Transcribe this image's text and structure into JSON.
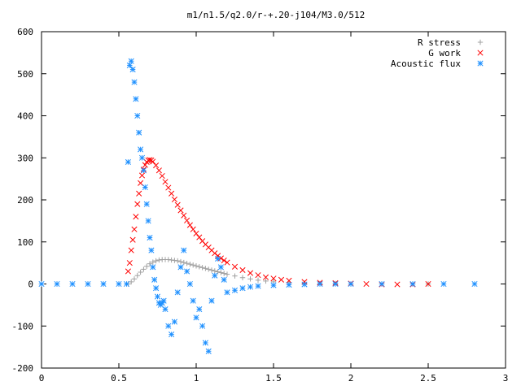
{
  "chart_data": {
    "type": "scatter",
    "title": "m1/n1.5/q2.0/r-+.20-j104/M3.0/512",
    "xlabel": "",
    "ylabel": "",
    "xlim": [
      0,
      3
    ],
    "ylim": [
      -200,
      600
    ],
    "grid": false,
    "legend_position": "top-right",
    "x_ticks": [
      "0",
      "0.5",
      "1",
      "1.5",
      "2",
      "2.5",
      "3"
    ],
    "y_ticks": [
      "-200",
      "-100",
      "0",
      "100",
      "200",
      "300",
      "400",
      "500",
      "600"
    ],
    "series": [
      {
        "name": "R stress",
        "marker": "plus",
        "color": "#a0a0a0",
        "x": [
          0.0,
          0.1,
          0.2,
          0.3,
          0.4,
          0.5,
          0.56,
          0.58,
          0.6,
          0.62,
          0.64,
          0.66,
          0.68,
          0.7,
          0.72,
          0.74,
          0.76,
          0.78,
          0.8,
          0.82,
          0.84,
          0.86,
          0.88,
          0.9,
          0.92,
          0.94,
          0.96,
          0.98,
          1.0,
          1.02,
          1.04,
          1.06,
          1.08,
          1.1,
          1.12,
          1.14,
          1.16,
          1.18,
          1.2,
          1.25,
          1.3,
          1.35,
          1.4,
          1.45,
          1.5,
          1.6,
          1.7,
          1.8,
          1.9,
          2.0,
          2.2,
          2.4,
          2.5
        ],
        "y": [
          0,
          0,
          0,
          0,
          0,
          0,
          0,
          5,
          12,
          20,
          28,
          35,
          42,
          48,
          52,
          55,
          57,
          58,
          58,
          58,
          57,
          56,
          55,
          53,
          51,
          49,
          47,
          45,
          43,
          41,
          39,
          37,
          35,
          33,
          31,
          29,
          27,
          25,
          23,
          19,
          15,
          12,
          9,
          7,
          5,
          3,
          2,
          1,
          1,
          0,
          0,
          0,
          0
        ]
      },
      {
        "name": "G work",
        "marker": "cross",
        "color": "#ff0000",
        "x": [
          0.56,
          0.57,
          0.58,
          0.59,
          0.6,
          0.61,
          0.62,
          0.63,
          0.64,
          0.65,
          0.66,
          0.67,
          0.68,
          0.69,
          0.7,
          0.71,
          0.72,
          0.74,
          0.76,
          0.78,
          0.8,
          0.82,
          0.84,
          0.86,
          0.88,
          0.9,
          0.92,
          0.94,
          0.96,
          0.98,
          1.0,
          1.02,
          1.04,
          1.06,
          1.08,
          1.1,
          1.12,
          1.14,
          1.16,
          1.18,
          1.2,
          1.25,
          1.3,
          1.35,
          1.4,
          1.45,
          1.5,
          1.55,
          1.6,
          1.7,
          1.8,
          1.9,
          2.0,
          2.1,
          2.2,
          2.3,
          2.4,
          2.5
        ],
        "y": [
          30,
          50,
          80,
          105,
          130,
          160,
          190,
          215,
          240,
          258,
          272,
          283,
          290,
          294,
          295,
          294,
          291,
          282,
          270,
          257,
          243,
          229,
          215,
          201,
          188,
          175,
          163,
          151,
          140,
          130,
          120,
          111,
          102,
          94,
          87,
          80,
          73,
          67,
          61,
          56,
          51,
          41,
          33,
          26,
          21,
          16,
          13,
          10,
          8,
          5,
          3,
          2,
          1,
          0,
          -1,
          -1,
          -1,
          0
        ]
      },
      {
        "name": "Acoustic flux",
        "marker": "star",
        "color": "#1e90ff",
        "x": [
          0.0,
          0.1,
          0.2,
          0.3,
          0.4,
          0.5,
          0.55,
          0.56,
          0.57,
          0.58,
          0.59,
          0.6,
          0.61,
          0.62,
          0.63,
          0.64,
          0.65,
          0.66,
          0.67,
          0.68,
          0.69,
          0.7,
          0.71,
          0.72,
          0.73,
          0.74,
          0.75,
          0.76,
          0.77,
          0.78,
          0.79,
          0.8,
          0.82,
          0.84,
          0.86,
          0.88,
          0.9,
          0.92,
          0.94,
          0.96,
          0.98,
          1.0,
          1.02,
          1.04,
          1.06,
          1.08,
          1.1,
          1.12,
          1.14,
          1.16,
          1.18,
          1.2,
          1.25,
          1.3,
          1.35,
          1.4,
          1.5,
          1.6,
          1.7,
          1.8,
          1.9,
          2.0,
          2.2,
          2.4,
          2.6,
          2.8
        ],
        "y": [
          0,
          0,
          0,
          0,
          0,
          0,
          0,
          290,
          520,
          530,
          510,
          480,
          440,
          400,
          360,
          320,
          300,
          270,
          230,
          190,
          150,
          110,
          80,
          40,
          10,
          -10,
          -30,
          -45,
          -50,
          -45,
          -40,
          -60,
          -100,
          -120,
          -90,
          -20,
          40,
          80,
          30,
          0,
          -40,
          -80,
          -60,
          -100,
          -140,
          -160,
          -40,
          20,
          60,
          40,
          10,
          -20,
          -15,
          -10,
          -7,
          -5,
          -3,
          -2,
          -1,
          0,
          0,
          0,
          0,
          0,
          0,
          0
        ]
      }
    ]
  }
}
